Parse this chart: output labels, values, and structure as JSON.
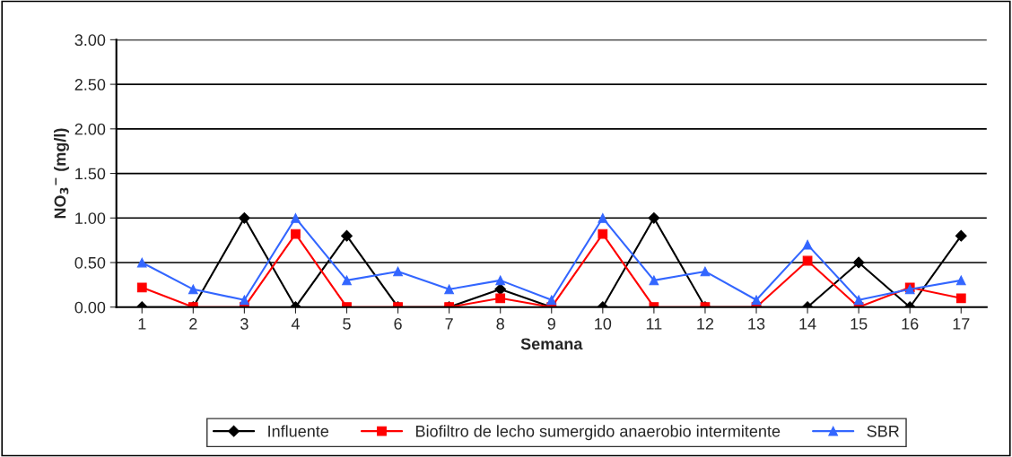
{
  "chart_data": {
    "type": "line",
    "xlabel": "Semana",
    "ylabel": "NO$_{3}$$^{−}$ (mg/l)",
    "categories": [
      "1",
      "2",
      "3",
      "4",
      "5",
      "6",
      "7",
      "8",
      "9",
      "10",
      "11",
      "12",
      "13",
      "14",
      "15",
      "16",
      "17"
    ],
    "series": [
      {
        "name": "Influente",
        "color": "#000000",
        "marker": "diamond",
        "values": [
          0,
          0,
          1.0,
          0,
          0.8,
          0,
          0,
          0.2,
          0,
          0,
          1.0,
          0,
          0,
          0,
          0.5,
          0,
          0.8
        ]
      },
      {
        "name": "Biofiltro de lecho sumergido anaerobio intermitente",
        "color": "#ff0000",
        "marker": "square",
        "values": [
          0.22,
          0,
          0,
          0.82,
          0,
          0,
          0,
          0.1,
          0,
          0.82,
          0,
          0,
          0,
          0.52,
          0,
          0.22,
          0.1
        ]
      },
      {
        "name": "SBR",
        "color": "#3366ff",
        "marker": "triangle",
        "values": [
          0.5,
          0.2,
          0.08,
          1.0,
          0.3,
          0.4,
          0.2,
          0.3,
          0.08,
          1.0,
          0.3,
          0.4,
          0.08,
          0.7,
          0.08,
          0.2,
          0.3
        ]
      }
    ],
    "ylim": [
      0,
      3
    ],
    "yticks": [
      {
        "value": 0,
        "label": "0.00"
      },
      {
        "value": 0.5,
        "label": "0.50"
      },
      {
        "value": 1,
        "label": "1.00"
      },
      {
        "value": 1.5,
        "label": "1.50"
      },
      {
        "value": 2,
        "label": "2.00"
      },
      {
        "value": 2.5,
        "label": "2.50"
      },
      {
        "value": 3,
        "label": "3.00"
      }
    ],
    "grid": "y",
    "legend": "bottom",
    "line_style": "solid"
  }
}
